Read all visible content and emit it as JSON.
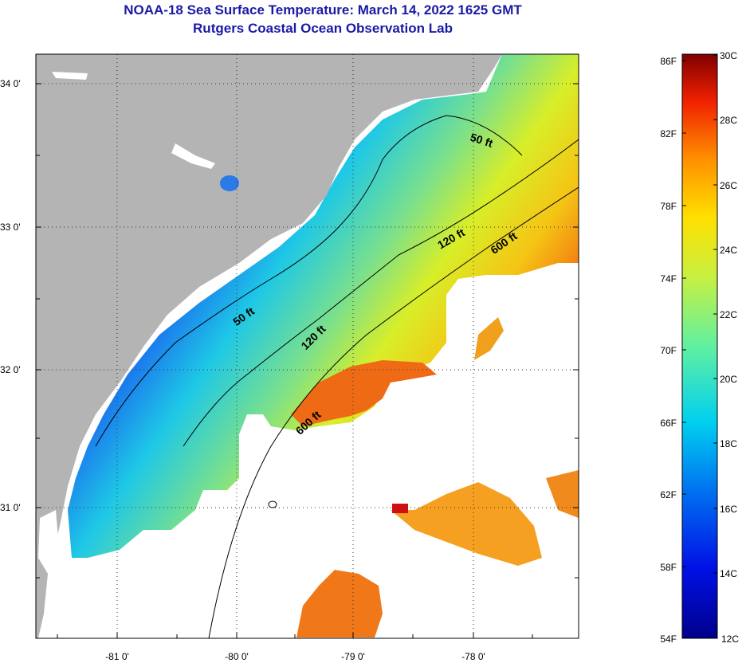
{
  "title": "NOAA-18 Sea Surface Temperature:  March 14, 2022 1625 GMT",
  "subtitle": "Rutgers Coastal Ocean Observation Lab",
  "lat_labels": [
    "34 0'",
    "33 0'",
    "32 0'",
    "31 0'"
  ],
  "lon_labels": [
    "-81 0'",
    "-80 0'",
    "-79 0'",
    "-78 0'"
  ],
  "isobaths": {
    "fifty_a": "50 ft",
    "fifty_b": "50 ft",
    "onetwenty_a": "120 ft",
    "onetwenty_b": "120 ft",
    "sixhundred_a": "600 ft",
    "sixhundred_b": "600 ft"
  },
  "colorbar": {
    "fahrenheit": [
      "86F",
      "82F",
      "78F",
      "74F",
      "70F",
      "66F",
      "62F",
      "58F",
      "54F"
    ],
    "celsius": [
      "30C",
      "28C",
      "26C",
      "24C",
      "22C",
      "20C",
      "18C",
      "16C",
      "14C",
      "12C"
    ]
  },
  "colors": {
    "land": "#b4b4b4",
    "no_data": "#ffffff",
    "title": "#1a1aa6"
  }
}
